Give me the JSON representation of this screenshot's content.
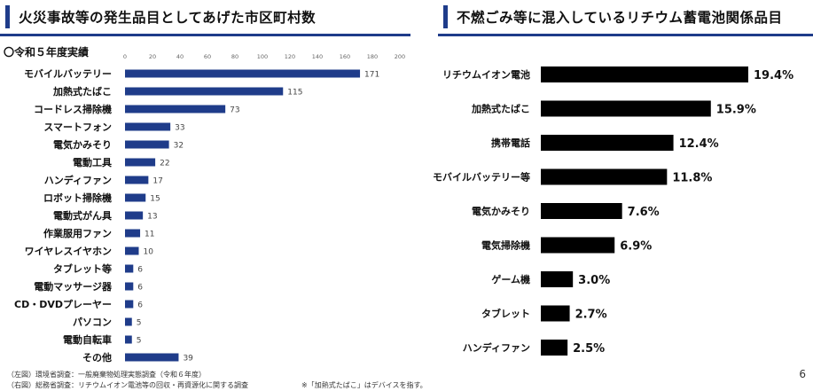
{
  "left": {
    "title": "火災事故等の発生品目としてあげた市区町村数",
    "subtitle": "〇令和５年度実績"
  },
  "right": {
    "title": "不燃ごみ等に混入しているリチウム蓄電池関係品目"
  },
  "footnotes": {
    "line1": "（左図）環境省調査：一般廃棄物処理実態調査（令和６年度）",
    "line2": "（右図）総務省調査：リチウムイオン電池等の回収・再資源化に関する調査",
    "note": "※「加熱式たばこ」はデバイスを指す。"
  },
  "page_number": "6",
  "colors": {
    "left_bar": "#1f3c8a",
    "right_bar": "#000000",
    "accent": "#1f3c8a"
  },
  "chart_data": [
    {
      "type": "bar",
      "orientation": "horizontal",
      "title": "火災事故等の発生品目としてあげた市区町村数",
      "xlim": [
        0,
        200
      ],
      "x_ticks": [
        0,
        20,
        40,
        60,
        80,
        100,
        120,
        140,
        160,
        180,
        200
      ],
      "grid": false,
      "categories": [
        "モバイルバッテリー",
        "加熱式たばこ",
        "コードレス掃除機",
        "スマートフォン",
        "電気かみそり",
        "電動工具",
        "ハンディファン",
        "ロボット掃除機",
        "電動式がん具",
        "作業服用ファン",
        "ワイヤレスイヤホン",
        "タブレット等",
        "電動マッサージ器",
        "CD・DVDプレーヤー",
        "パソコン",
        "電動自転車",
        "その他"
      ],
      "values": [
        171,
        115,
        73,
        33,
        32,
        22,
        17,
        15,
        13,
        11,
        10,
        6,
        6,
        6,
        5,
        5,
        39
      ]
    },
    {
      "type": "bar",
      "orientation": "horizontal",
      "title": "不燃ごみ等に混入しているリチウム蓄電池関係品目",
      "unit": "%",
      "grid": false,
      "categories": [
        "リチウムイオン電池",
        "加熱式たばこ",
        "携帯電話",
        "モバイルバッテリー等",
        "電気かみそり",
        "電気掃除機",
        "ゲーム機",
        "タブレット",
        "ハンディファン"
      ],
      "values": [
        19.4,
        15.9,
        12.4,
        11.8,
        7.6,
        6.9,
        3.0,
        2.7,
        2.5
      ],
      "value_labels": [
        "19.4%",
        "15.9%",
        "12.4%",
        "11.8%",
        "7.6%",
        "6.9%",
        "3.0%",
        "2.7%",
        "2.5%"
      ]
    }
  ]
}
